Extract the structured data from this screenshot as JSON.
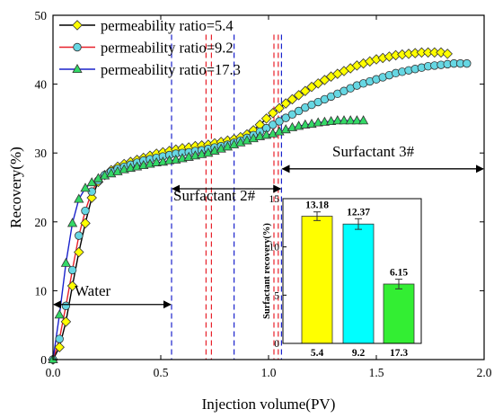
{
  "chart_data": [
    {
      "type": "line",
      "xlabel": "Injection volume(PV)",
      "ylabel": "Recovery(%)",
      "xlim": [
        0,
        2.0
      ],
      "ylim": [
        0,
        50
      ],
      "xticks": [
        0.0,
        0.5,
        1.0,
        1.5,
        2.0
      ],
      "xtick_labels": [
        "0.0",
        "0.5",
        "1.0",
        "1.5",
        "2.0"
      ],
      "yticks": [
        0,
        10,
        20,
        30,
        40,
        50
      ],
      "ytick_labels": [
        "0",
        "10",
        "20",
        "30",
        "40",
        "50"
      ],
      "grid": false,
      "legend_position": "top-left",
      "series": [
        {
          "name": "permeability ratio=5.4",
          "marker": "diamond",
          "color": "#ffff00",
          "line_color": "#000000",
          "x": [
            0,
            0.03,
            0.06,
            0.09,
            0.12,
            0.15,
            0.18,
            0.21,
            0.24,
            0.27,
            0.3,
            0.33,
            0.36,
            0.39,
            0.42,
            0.45,
            0.48,
            0.51,
            0.54,
            0.57,
            0.6,
            0.63,
            0.66,
            0.69,
            0.72,
            0.75,
            0.78,
            0.81,
            0.84,
            0.87,
            0.9,
            0.93,
            0.96,
            0.99,
            1.02,
            1.05,
            1.08,
            1.11,
            1.14,
            1.17,
            1.2,
            1.23,
            1.26,
            1.29,
            1.32,
            1.35,
            1.38,
            1.41,
            1.44,
            1.47,
            1.5,
            1.53,
            1.56,
            1.59,
            1.62,
            1.65,
            1.68,
            1.71,
            1.74,
            1.77,
            1.8,
            1.83
          ],
          "y": [
            0,
            1.8,
            5.5,
            10.7,
            15.6,
            19.8,
            23.5,
            25.8,
            26.8,
            27.5,
            28.0,
            28.4,
            28.7,
            29.0,
            29.3,
            29.6,
            29.9,
            30.1,
            30.3,
            30.5,
            30.7,
            30.8,
            31.0,
            31.1,
            31.2,
            31.4,
            31.6,
            31.8,
            32.0,
            32.3,
            32.7,
            33.3,
            34.1,
            35.0,
            35.8,
            36.5,
            37.2,
            37.8,
            38.4,
            39.0,
            39.6,
            40.1,
            40.6,
            41.1,
            41.5,
            41.9,
            42.3,
            42.7,
            43.0,
            43.3,
            43.6,
            43.8,
            44.0,
            44.2,
            44.3,
            44.4,
            44.5,
            44.6,
            44.6,
            44.6,
            44.6,
            44.4
          ]
        },
        {
          "name": "permeability ratio=9.2",
          "marker": "circle",
          "color": "#66d7e3",
          "line_color": "#e8202a",
          "x": [
            0,
            0.03,
            0.06,
            0.09,
            0.12,
            0.15,
            0.18,
            0.21,
            0.24,
            0.27,
            0.3,
            0.33,
            0.36,
            0.39,
            0.42,
            0.45,
            0.48,
            0.51,
            0.54,
            0.57,
            0.6,
            0.63,
            0.66,
            0.69,
            0.72,
            0.75,
            0.78,
            0.81,
            0.84,
            0.87,
            0.9,
            0.93,
            0.96,
            0.99,
            1.02,
            1.05,
            1.08,
            1.11,
            1.14,
            1.17,
            1.2,
            1.23,
            1.26,
            1.29,
            1.32,
            1.35,
            1.38,
            1.41,
            1.44,
            1.47,
            1.5,
            1.53,
            1.56,
            1.59,
            1.62,
            1.65,
            1.68,
            1.71,
            1.74,
            1.77,
            1.8,
            1.83,
            1.86,
            1.89,
            1.92
          ],
          "y": [
            0,
            3.0,
            7.8,
            13.0,
            18.0,
            21.6,
            24.4,
            26.0,
            26.8,
            27.3,
            27.7,
            28.0,
            28.3,
            28.6,
            28.9,
            29.1,
            29.3,
            29.5,
            29.7,
            29.9,
            30.0,
            30.1,
            30.3,
            30.4,
            30.6,
            30.8,
            31.0,
            31.2,
            31.5,
            31.8,
            32.2,
            32.6,
            33.1,
            33.6,
            34.1,
            34.6,
            35.1,
            35.6,
            36.1,
            36.6,
            37.0,
            37.4,
            37.8,
            38.2,
            38.6,
            39.0,
            39.4,
            39.8,
            40.1,
            40.4,
            40.7,
            41.0,
            41.3,
            41.6,
            41.8,
            42.0,
            42.2,
            42.4,
            42.6,
            42.7,
            42.8,
            42.9,
            43.0,
            43.0,
            43.0
          ]
        },
        {
          "name": "permeability ratio=17.3",
          "marker": "triangle",
          "color": "#33d966",
          "line_color": "#1a22cc",
          "x": [
            0,
            0.03,
            0.06,
            0.09,
            0.12,
            0.15,
            0.18,
            0.21,
            0.24,
            0.27,
            0.3,
            0.33,
            0.36,
            0.39,
            0.42,
            0.45,
            0.48,
            0.51,
            0.54,
            0.57,
            0.6,
            0.63,
            0.66,
            0.69,
            0.72,
            0.75,
            0.78,
            0.81,
            0.84,
            0.87,
            0.9,
            0.93,
            0.96,
            0.99,
            1.02,
            1.05,
            1.08,
            1.11,
            1.14,
            1.17,
            1.2,
            1.23,
            1.26,
            1.29,
            1.32,
            1.35,
            1.38,
            1.41,
            1.44
          ],
          "y": [
            0,
            6.5,
            14.0,
            19.8,
            23.3,
            24.9,
            25.7,
            26.3,
            26.7,
            27.0,
            27.3,
            27.6,
            27.8,
            28.0,
            28.2,
            28.4,
            28.6,
            28.7,
            28.9,
            29.0,
            29.2,
            29.4,
            29.6,
            29.8,
            30.0,
            30.3,
            30.6,
            30.9,
            31.2,
            31.5,
            31.8,
            32.1,
            32.4,
            32.6,
            32.8,
            33.1,
            33.4,
            33.7,
            33.9,
            34.1,
            34.2,
            34.4,
            34.5,
            34.6,
            34.7,
            34.7,
            34.7,
            34.7,
            34.7
          ]
        }
      ],
      "stage_lines": [
        {
          "x": 0.55,
          "color": "#1a22cc"
        },
        {
          "x": 0.71,
          "color": "#e8202a"
        },
        {
          "x": 0.735,
          "color": "#e8202a"
        },
        {
          "x": 0.84,
          "color": "#1a22cc"
        },
        {
          "x": 1.025,
          "color": "#e8202a"
        },
        {
          "x": 1.045,
          "color": "#e8202a"
        },
        {
          "x": 1.06,
          "color": "#1a22cc"
        }
      ],
      "annotations": [
        {
          "text": "Water",
          "x_from": 0.0,
          "x_to": 0.55,
          "y": 8.0
        },
        {
          "text": "Surfactant 2#",
          "x_from": 0.55,
          "x_to": 1.06,
          "y": 24.8
        },
        {
          "text": "Surfactant 3#",
          "x_from": 1.06,
          "x_to": 2.0,
          "y": 27.7
        }
      ]
    },
    {
      "type": "bar",
      "ylabel": "Surfactant recovery(%)",
      "ylim": [
        0,
        15
      ],
      "yticks": [
        0,
        5,
        10,
        15
      ],
      "ytick_labels": [
        "0",
        "5",
        "10",
        "15"
      ],
      "categories": [
        "5.4",
        "9.2",
        "17.3"
      ],
      "values": [
        13.18,
        12.37,
        6.15
      ],
      "value_labels": [
        "13.18",
        "12.37",
        "6.15"
      ],
      "errors": [
        0.45,
        0.55,
        0.5
      ],
      "colors": [
        "#ffff00",
        "#00ffff",
        "#33ee33"
      ]
    }
  ]
}
